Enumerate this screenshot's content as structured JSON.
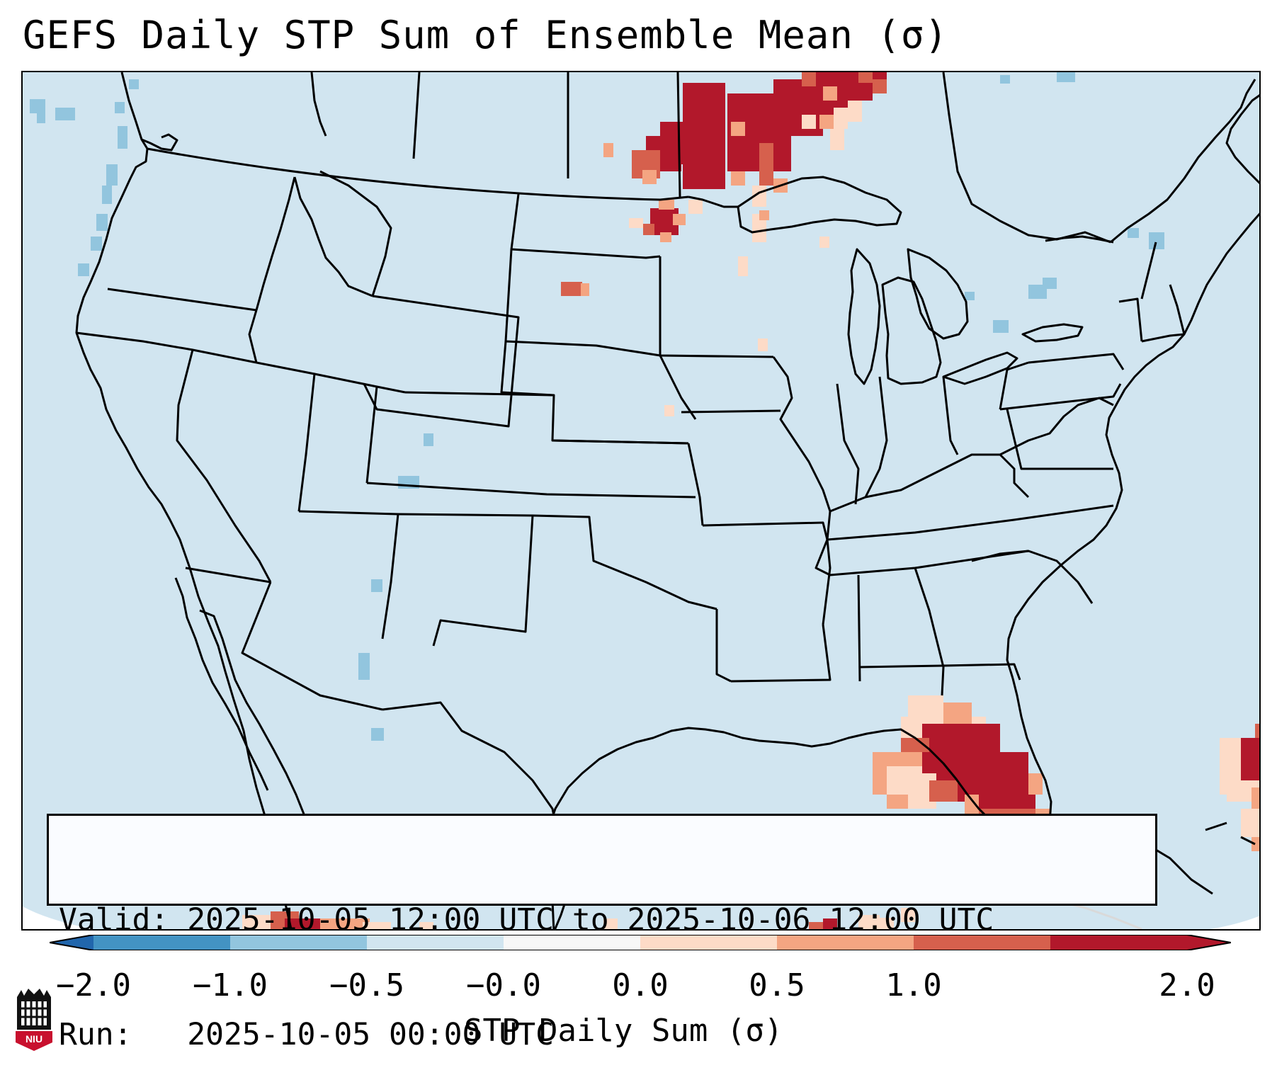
{
  "title": "GEFS Daily STP Sum of Ensemble Mean (σ)",
  "info": {
    "valid_label": "Valid:",
    "valid_value": "2025-10-05 12:00 UTC to 2025-10-06 12:00 UTC",
    "run_label": "Run:  ",
    "run_value": "2025-10-05 00:00 UTC"
  },
  "colorbar": {
    "label": "STP Daily Sum (σ)",
    "ticks": [
      "−2.0",
      "−1.0",
      "−0.5",
      "−0.0",
      "0.0",
      "0.5",
      "1.0",
      "2.0"
    ],
    "bin_colors": [
      "#4393c3",
      "#92c5de",
      "#d1e5f0",
      "#f7f7f7",
      "#fddbc7",
      "#f4a582",
      "#d6604d",
      "#b2182b"
    ],
    "extend": "both"
  },
  "map": {
    "background_color": "#d1e5f0",
    "outside_color": "#ffffff",
    "region": "Contiguous United States",
    "features": [
      "state borders",
      "coastlines",
      "Great Lakes"
    ]
  },
  "logo": {
    "text": "NIU",
    "icon": "niu-castle-logo"
  }
}
